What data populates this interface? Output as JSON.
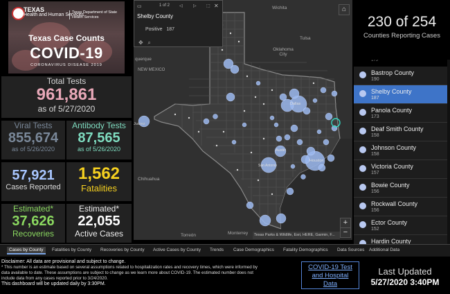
{
  "banner": {
    "agency_left": "TEXAS",
    "agency_left_sub": "Health and Human Services",
    "agency_right_line1": "Texas Department of State",
    "agency_right_line2": "Health Services",
    "title": "Texas Case Counts",
    "covid": "COVID-19",
    "subtitle": "CORONAVIRUS DISEASE 2019"
  },
  "stats": {
    "total_tests_label": "Total Tests",
    "total_tests_value": "961,861",
    "total_tests_date": "as of 5/27/2020",
    "viral_label": "Viral Tests",
    "viral_value": "855,674",
    "viral_date": "as of 5/26/2020",
    "antibody_label": "Antibody Tests",
    "antibody_value": "87,565",
    "antibody_date": "as of 5/26/2020",
    "cases_value": "57,921",
    "cases_label": "Cases Reported",
    "fatalities_value": "1,562",
    "fatalities_label": "Fatalities",
    "recoveries_est_label": "Estimated*",
    "recoveries_value": "37,626",
    "recoveries_label": "Recoveries",
    "active_est_label": "Estimated*",
    "active_value": "22,055",
    "active_label": "Active Cases"
  },
  "colors": {
    "total": "#e8a8b8",
    "viral": "#7a8899",
    "antibody": "#7fdcc0",
    "cases": "#a9c6ff",
    "fatalities": "#f5d020",
    "recoveries": "#8bd860",
    "active": "#ffffff",
    "selected": "#3e74c8"
  },
  "popup": {
    "pager": "1 of 2",
    "county": "Shelby County",
    "field": "Positive",
    "value": "187"
  },
  "map": {
    "places": {
      "wichita": "Wichita",
      "tulsa": "Tulsa",
      "okc": "Oklahoma City",
      "albuquerque": "querque",
      "new_mexico": "NEW MEXICO",
      "chihuahua": "Chihuahua",
      "torreon": "Torreón",
      "monterrey": "Monterrey",
      "juarez": "Juárez",
      "dallas": "Dallas",
      "houston": "Houston",
      "austin": "Austin",
      "san_antonio": "San Antonio"
    },
    "attribution": "Texas Parks & Wildlife, Esri, HERE, Garmin, F...",
    "zoom_in": "+",
    "zoom_out": "−"
  },
  "right": {
    "counter": "230 of 254",
    "counter_label": "Counties Reporting Cases",
    "list": [
      {
        "name": "Bastrop County",
        "value": "190"
      },
      {
        "name": "Shelby County",
        "value": "187",
        "selected": true
      },
      {
        "name": "Panola County",
        "value": "173"
      },
      {
        "name": "Deaf Smith County",
        "value": "158"
      },
      {
        "name": "Johnson County",
        "value": "158"
      },
      {
        "name": "Victoria County",
        "value": "157"
      },
      {
        "name": "Bowie County",
        "value": "156"
      },
      {
        "name": "Rockwall County",
        "value": "156"
      },
      {
        "name": "Ector County",
        "value": "152"
      },
      {
        "name": "Hardin County",
        "value": "134"
      }
    ]
  },
  "tabs": [
    {
      "label": "Cases by County",
      "active": true
    },
    {
      "label": "Fatalities by County"
    },
    {
      "label": "Recoveries by County"
    },
    {
      "label": "Active Cases by County"
    },
    {
      "label": "Trends"
    },
    {
      "label": "Case Demographics"
    },
    {
      "label": "Fatality Demographics"
    },
    {
      "label": "Data Sources"
    },
    {
      "label": "Additional Data"
    }
  ],
  "footer": {
    "disclaimer_head": "Disclaimer: All data are provisional and subject to change.",
    "disclaimer_1": "* This number is an estimate based on several assumptions related to hospitalization rates and recovery times, which were informed by",
    "disclaimer_2": "data available to date. These assumptions are subject to change as we learn more about COVID-19. The estimated number does not",
    "disclaimer_3": "include data from any cases reported prior to 3/24/2020.",
    "disclaimer_4": "This dashboard will be updated daily by 3:30PM.",
    "link_line1": "COVID-19 Test",
    "link_line2": "and Hospital",
    "link_line3": "Data",
    "last_updated_label": "Last Updated",
    "last_updated_value": "5/27/2020 3:40PM"
  }
}
